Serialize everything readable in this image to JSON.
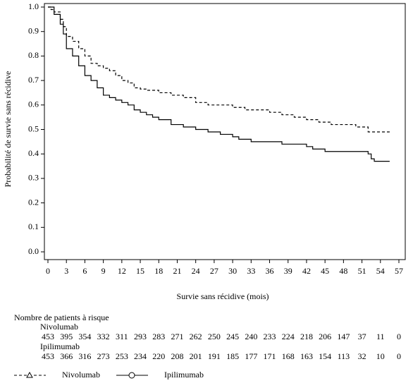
{
  "chart_data": {
    "type": "step",
    "xlabel": "Survie sans récidive (mois)",
    "ylabel": "Probabilité de survie sans récidive",
    "xlim": [
      0,
      57
    ],
    "ylim": [
      0,
      1
    ],
    "xticks": [
      0,
      3,
      6,
      9,
      12,
      15,
      18,
      21,
      24,
      27,
      30,
      33,
      36,
      39,
      42,
      45,
      48,
      51,
      54,
      57
    ],
    "yticks": [
      {
        "value": 0,
        "label": "0.0"
      },
      {
        "value": 0.1,
        "label": "0.1"
      },
      {
        "value": 0.2,
        "label": "0.2"
      },
      {
        "value": 0.3,
        "label": "0.3"
      },
      {
        "value": 0.4,
        "label": "0.4"
      },
      {
        "value": 0.5,
        "label": "0.5"
      },
      {
        "value": 0.6,
        "label": "0.6"
      },
      {
        "value": 0.7,
        "label": "0.7"
      },
      {
        "value": 0.8,
        "label": "0.8"
      },
      {
        "value": 0.9,
        "label": "0.9"
      },
      {
        "value": 1,
        "label": "1.0"
      }
    ],
    "risk_title": "Nombre de patients à risque",
    "series": [
      {
        "name": "Nivolumab",
        "color": "#000000",
        "dash": true,
        "marker": "triangle",
        "x": [
          0,
          0.5,
          1,
          2,
          2.5,
          3,
          4,
          5,
          6,
          7,
          8,
          9,
          10,
          11,
          12,
          13,
          14,
          15,
          16,
          18,
          20,
          22,
          24,
          26,
          28,
          30,
          32,
          34,
          36,
          38,
          40,
          42,
          44,
          46,
          48,
          50,
          52,
          54,
          55.5
        ],
        "values": [
          1,
          0.99,
          0.98,
          0.95,
          0.92,
          0.88,
          0.86,
          0.83,
          0.8,
          0.77,
          0.76,
          0.75,
          0.74,
          0.72,
          0.7,
          0.69,
          0.67,
          0.665,
          0.66,
          0.65,
          0.64,
          0.63,
          0.61,
          0.6,
          0.6,
          0.59,
          0.58,
          0.58,
          0.57,
          0.56,
          0.55,
          0.54,
          0.53,
          0.52,
          0.52,
          0.51,
          0.49,
          0.49,
          0.49
        ],
        "at_risk": [
          453,
          395,
          354,
          332,
          311,
          293,
          283,
          271,
          262,
          250,
          245,
          240,
          233,
          224,
          218,
          206,
          147,
          37,
          11,
          0
        ]
      },
      {
        "name": "Ipilimumab",
        "color": "#000000",
        "dash": false,
        "marker": "circle",
        "x": [
          0,
          1,
          2,
          2.5,
          3,
          4,
          5,
          6,
          7,
          8,
          9,
          10,
          11,
          12,
          13,
          14,
          15,
          16,
          17,
          18,
          20,
          22,
          24,
          26,
          28,
          30,
          31,
          33,
          36,
          38,
          40,
          42,
          43,
          45,
          47,
          50,
          52,
          52.5,
          53,
          55.5
        ],
        "values": [
          1,
          0.97,
          0.93,
          0.89,
          0.83,
          0.8,
          0.76,
          0.72,
          0.7,
          0.67,
          0.64,
          0.63,
          0.62,
          0.61,
          0.6,
          0.58,
          0.57,
          0.56,
          0.55,
          0.54,
          0.52,
          0.51,
          0.5,
          0.49,
          0.48,
          0.47,
          0.46,
          0.45,
          0.45,
          0.44,
          0.44,
          0.43,
          0.42,
          0.41,
          0.41,
          0.41,
          0.4,
          0.38,
          0.37,
          0.37
        ],
        "at_risk": [
          453,
          366,
          316,
          273,
          253,
          234,
          220,
          208,
          201,
          191,
          185,
          177,
          171,
          168,
          163,
          154,
          113,
          32,
          10,
          0
        ]
      }
    ]
  }
}
